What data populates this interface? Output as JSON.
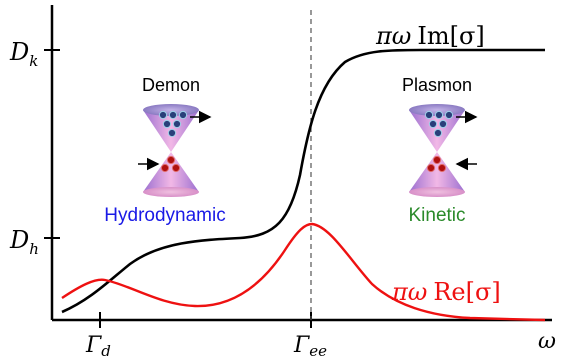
{
  "axes": {
    "x_symbol": "ω",
    "x_ticks": [
      {
        "main": "Γ",
        "sub": "d"
      },
      {
        "main": "Γ",
        "sub": "ee"
      }
    ],
    "y_ticks": [
      {
        "main": "D",
        "sub": "k"
      },
      {
        "main": "D",
        "sub": "h"
      }
    ]
  },
  "curves": {
    "im": {
      "label_prefix": "πω",
      "label_fn": "Im[σ]",
      "color": "#000000"
    },
    "re": {
      "label_prefix": "πω",
      "label_fn": "Re[σ]",
      "color": "#ee1111"
    }
  },
  "regimes": {
    "left": {
      "title": "Demon",
      "regime": "Hydrodynamic",
      "regime_color": "#1a1ae6"
    },
    "right": {
      "title": "Plasmon",
      "regime": "Kinetic",
      "regime_color": "#2a8a2a"
    }
  }
}
